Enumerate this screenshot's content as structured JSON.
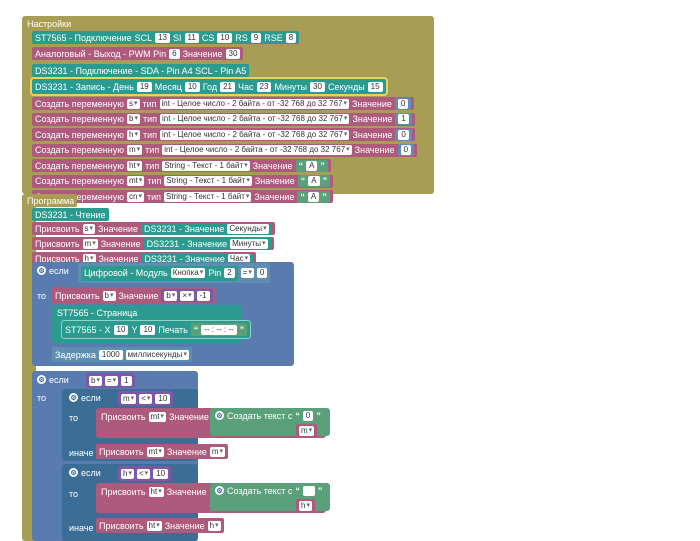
{
  "colors": {
    "settings": "#a79d55",
    "display": "#2b9b8f",
    "var": "#ad5a7c",
    "control": "#5a7bb0",
    "text": "#5aa07a",
    "math": "#5e8fb0"
  },
  "settings": {
    "header": "Настройки",
    "st7565": {
      "label": "ST7565 - Подключение",
      "scl_l": "SCL",
      "scl": "13",
      "si_l": "SI",
      "si": "11",
      "cs_l": "CS",
      "cs": "10",
      "rs_l": "RS",
      "rs": "9",
      "rse_l": "RSE",
      "rse": "8"
    },
    "analog": {
      "label": "Аналоговый - Выход - PWM Pin",
      "pin": "6",
      "value_l": "Значение",
      "value": "30"
    },
    "ds_connect": {
      "label": "DS3231 - Подключение - SDA - Pin A4 SCL - Pin A5"
    },
    "ds_write": {
      "label": "DS3231 - Запись - День",
      "day": "19",
      "month_l": "Месяц",
      "month": "10",
      "year_l": "Год",
      "year": "21",
      "hour_l": "Час",
      "hour": "23",
      "min_l": "Минуты",
      "min": "30",
      "sec_l": "Секунды",
      "sec": "15"
    },
    "vars": [
      {
        "label": "Создать переменную",
        "name": "s",
        "type_l": "тип",
        "type": "int - Целое число - 2 байта - от -32 768 до 32 767",
        "value_l": "Значение",
        "value": "0"
      },
      {
        "label": "Создать переменную",
        "name": "b",
        "type_l": "тип",
        "type": "int - Целое число - 2 байта - от -32 768 до 32 767",
        "value_l": "Значение",
        "value": "1"
      },
      {
        "label": "Создать переменную",
        "name": "h",
        "type_l": "тип",
        "type": "int - Целое число - 2 байта - от -32 768 до 32 767",
        "value_l": "Значение",
        "value": "0"
      },
      {
        "label": "Создать переменную",
        "name": "m",
        "type_l": "тип",
        "type": "int - Целое число - 2 байта - от -32 768 до 32 767",
        "value_l": "Значение",
        "value": "0"
      },
      {
        "label": "Создать переменную",
        "name": "ht",
        "type_l": "тип",
        "type": "String - Текст - 1 байт",
        "value_l": "Значение",
        "value": "A"
      },
      {
        "label": "Создать переменную",
        "name": "mt",
        "type_l": "тип",
        "type": "String - Текст - 1 байт",
        "value_l": "Значение",
        "value": "A"
      },
      {
        "label": "Создать переменную",
        "name": "cn",
        "type_l": "тип",
        "type": "String - Текст - 1 байт",
        "value_l": "Значение",
        "value": "A"
      }
    ]
  },
  "program": {
    "header": "Программа",
    "ds_read": "DS3231 - Чтение",
    "assigns": [
      {
        "label": "Присвоить",
        "var": "s",
        "value_l": "Значение",
        "src": "DS3231 - Значение",
        "field": "Секунды"
      },
      {
        "label": "Присвоить",
        "var": "m",
        "value_l": "Значение",
        "src": "DS3231 - Значение",
        "field": "Минуты"
      },
      {
        "label": "Присвоить",
        "var": "h",
        "value_l": "Значение",
        "src": "DS3231 - Значение",
        "field": "Час"
      }
    ],
    "if1": {
      "if_l": "если",
      "digital": "Цифровой - Модуль",
      "module": "Кнопка",
      "pin_l": "Pin",
      "pin": "2",
      "op": "=",
      "cmp": "0",
      "then_l": "то",
      "assign": "Присвоить",
      "var": "b",
      "value_l": "Значение",
      "var2": "b",
      "mul": "×",
      "num": "-1",
      "page": "ST7565 - Страница",
      "print_x_l": "ST7565 - X",
      "x": "10",
      "y_l": "Y",
      "y": "10",
      "print_l": "Печать",
      "text": "-- : -- : --",
      "delay_l": "Задержка",
      "delay": "1000",
      "delay_unit": "миллисекунды"
    },
    "if2": {
      "if_l": "если",
      "var": "b",
      "op": "=",
      "cmp": "1",
      "then_l": "то",
      "inner1": {
        "if_l": "если",
        "var": "m",
        "op": "<",
        "cmp": "10",
        "then_l": "то",
        "assign": "Присвоить",
        "target": "mt",
        "value_l": "Значение",
        "mk": "Создать текст с",
        "txt": "0",
        "else_l": "иначе",
        "else_assign": "Присвоить",
        "else_target": "mt",
        "else_value_l": "Значение",
        "else_var": "m"
      },
      "inner2": {
        "if_l": "если",
        "var": "h",
        "op": "<",
        "cmp": "10",
        "then_l": "то",
        "assign": "Присвоить",
        "target": "ht",
        "value_l": "Значение",
        "mk": "Создать текст с",
        "txt": "",
        "else_l": "иначе",
        "else_assign": "Присвоить",
        "else_target": "ht",
        "else_value_l": "Значение",
        "else_var": "h"
      }
    }
  }
}
